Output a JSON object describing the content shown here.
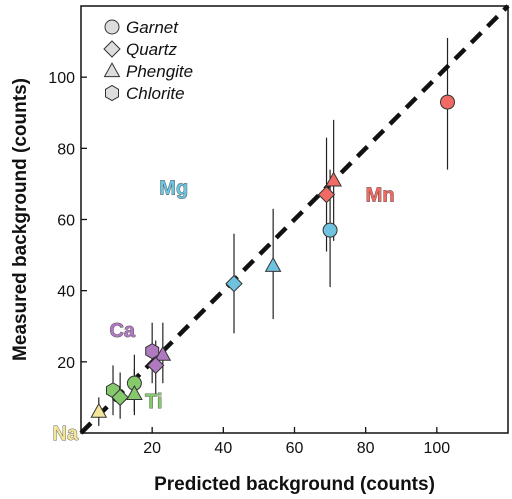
{
  "chart_data": {
    "type": "scatter",
    "xlabel": "Predicted background (counts)",
    "ylabel": "Measured background (counts)",
    "xlim": [
      0,
      120
    ],
    "ylim": [
      0,
      120
    ],
    "xticks": [
      20,
      40,
      60,
      80,
      100
    ],
    "yticks": [
      20,
      40,
      60,
      80,
      100
    ],
    "x_tick_labels": [
      "20",
      "40",
      "60",
      "80",
      "100"
    ],
    "y_tick_labels": [
      "20",
      "40",
      "60",
      "80",
      "100"
    ],
    "reference_line": "1:1 dashed",
    "legend": {
      "placement": "top-left",
      "entries": [
        {
          "label": "Garnet",
          "marker": "circle"
        },
        {
          "label": "Quartz",
          "marker": "diamond"
        },
        {
          "label": "Phengite",
          "marker": "triangle"
        },
        {
          "label": "Chlorite",
          "marker": "hexagon"
        }
      ]
    },
    "element_labels": [
      {
        "text": "Mg",
        "color": "#6fc3df",
        "x": 22,
        "y": 67
      },
      {
        "text": "Mn",
        "color": "#ef6b63",
        "x": 80,
        "y": 65
      },
      {
        "text": "Ca",
        "color": "#b07ac0",
        "x": 8,
        "y": 27
      },
      {
        "text": "Ti",
        "color": "#86c96d",
        "x": 18,
        "y": 7
      },
      {
        "text": "Na",
        "color": "#f3e59a",
        "x": -8,
        "y": -2
      }
    ],
    "points": [
      {
        "element": "Mn",
        "mineral": "Garnet",
        "x": 103,
        "y": 93,
        "ylow": 74,
        "yhigh": 111,
        "color": "#ef6b63"
      },
      {
        "element": "Mn",
        "mineral": "Quartz",
        "x": 69,
        "y": 67,
        "ylow": 51,
        "yhigh": 83,
        "color": "#ef6b63"
      },
      {
        "element": "Mn",
        "mineral": "Phengite",
        "x": 71,
        "y": 71,
        "ylow": 54,
        "yhigh": 88,
        "color": "#ef6b63"
      },
      {
        "element": "Mg",
        "mineral": "Garnet",
        "x": 70,
        "y": 57,
        "ylow": 41,
        "yhigh": 74,
        "color": "#6fc3df"
      },
      {
        "element": "Mg",
        "mineral": "Phengite",
        "x": 54,
        "y": 47,
        "ylow": 32,
        "yhigh": 63,
        "color": "#6fc3df"
      },
      {
        "element": "Mg",
        "mineral": "Quartz",
        "x": 43,
        "y": 42,
        "ylow": 28,
        "yhigh": 56,
        "color": "#6fc3df"
      },
      {
        "element": "Ca",
        "mineral": "Chlorite",
        "x": 20,
        "y": 23,
        "ylow": 14,
        "yhigh": 31,
        "color": "#b07ac0"
      },
      {
        "element": "Ca",
        "mineral": "Phengite",
        "x": 23,
        "y": 22,
        "ylow": 14,
        "yhigh": 31,
        "color": "#b07ac0"
      },
      {
        "element": "Ca",
        "mineral": "Quartz",
        "x": 21,
        "y": 19,
        "ylow": 11,
        "yhigh": 26,
        "color": "#b07ac0"
      },
      {
        "element": "Ti",
        "mineral": "Garnet",
        "x": 15,
        "y": 14,
        "ylow": 6,
        "yhigh": 22,
        "color": "#86c96d"
      },
      {
        "element": "Ti",
        "mineral": "Phengite",
        "x": 15,
        "y": 11,
        "ylow": 5,
        "yhigh": 18,
        "color": "#86c96d"
      },
      {
        "element": "Ti",
        "mineral": "Chlorite",
        "x": 9,
        "y": 12,
        "ylow": 5,
        "yhigh": 19,
        "color": "#86c96d"
      },
      {
        "element": "Ti",
        "mineral": "Quartz",
        "x": 11,
        "y": 10,
        "ylow": 4,
        "yhigh": 17,
        "color": "#86c96d"
      },
      {
        "element": "Na",
        "mineral": "Phengite",
        "x": 5,
        "y": 6,
        "ylow": 2,
        "yhigh": 10,
        "color": "#f3e59a"
      }
    ]
  }
}
